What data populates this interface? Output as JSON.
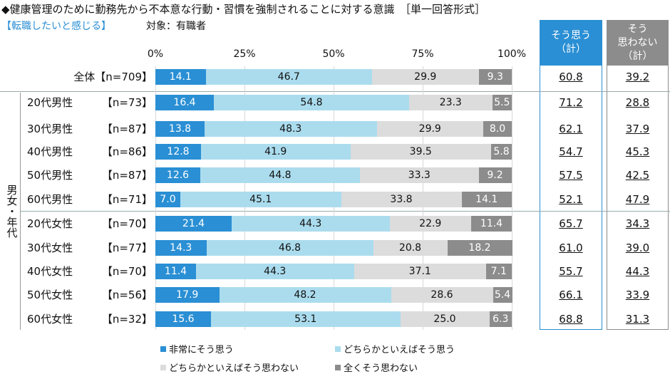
{
  "title": "◆健康管理のために勤務先から不本意な行動・習慣を強制されることに対する意識　［単一回答形式］",
  "subtitle": "【転職したいと感じる】",
  "target": "対象：有職者",
  "group_label": "男女・年代",
  "total_headers": {
    "agree": "そう思う\n（計）",
    "disagree": "そう\n思わない\n（計）"
  },
  "colors": {
    "very": "#2a8fd4",
    "somewhat": "#abdcee",
    "somewhat_not": "#dcdcdc",
    "not_at_all": "#8c8c8c",
    "agree_header": "#2a8fd4",
    "disagree_header": "#8c8c8c"
  },
  "chart_data": {
    "type": "bar",
    "orientation": "horizontal-stacked-100",
    "xlim": [
      0,
      100
    ],
    "ticks": [
      "0%",
      "25%",
      "50%",
      "75%",
      "100%"
    ],
    "categories": [
      "全体",
      "20代男性",
      "30代男性",
      "40代男性",
      "50代男性",
      "60代男性",
      "20代女性",
      "30代女性",
      "40代女性",
      "50代女性",
      "60代女性"
    ],
    "n": [
      "【n=709】",
      "【n=73】",
      "【n=87】",
      "【n=86】",
      "【n=87】",
      "【n=71】",
      "【n=70】",
      "【n=77】",
      "【n=70】",
      "【n=56】",
      "【n=32】"
    ],
    "series": [
      {
        "name": "非常にそう思う",
        "values": [
          14.1,
          16.4,
          13.8,
          12.8,
          12.6,
          7.0,
          21.4,
          14.3,
          11.4,
          17.9,
          15.6
        ]
      },
      {
        "name": "どちらかといえばそう思う",
        "values": [
          46.7,
          54.8,
          48.3,
          41.9,
          44.8,
          45.1,
          44.3,
          46.8,
          44.3,
          48.2,
          53.1
        ]
      },
      {
        "name": "どちらかといえばそう思わない",
        "values": [
          29.9,
          23.3,
          29.9,
          39.5,
          33.3,
          33.8,
          22.9,
          20.8,
          37.1,
          28.6,
          25.0
        ]
      },
      {
        "name": "全くそう思わない",
        "values": [
          9.3,
          5.5,
          8.0,
          5.8,
          9.2,
          14.1,
          11.4,
          18.2,
          7.1,
          5.4,
          6.3
        ]
      }
    ],
    "totals": {
      "agree": [
        "60.8",
        "71.2",
        "62.1",
        "54.7",
        "57.5",
        "52.1",
        "65.7",
        "61.0",
        "55.7",
        "66.1",
        "68.8"
      ],
      "disagree": [
        "39.2",
        "28.8",
        "37.9",
        "45.3",
        "42.5",
        "47.9",
        "34.3",
        "39.0",
        "44.3",
        "33.9",
        "31.3"
      ]
    },
    "legend": "bottom"
  }
}
